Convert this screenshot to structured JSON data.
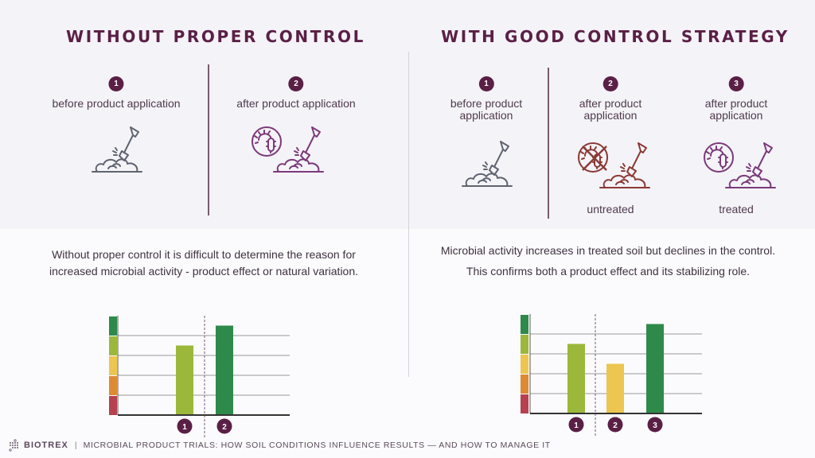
{
  "left": {
    "title": "WITHOUT PROPER CONTROL",
    "steps": [
      {
        "number": "1",
        "label": "before product application",
        "icon": "soil-shovel-icon"
      },
      {
        "number": "2",
        "label": "after product application",
        "icon": "soil-shovel-microbes-icon"
      }
    ],
    "description": [
      "Without proper control it is difficult to determine the reason for",
      "increased microbial activity - product effect or natural variation."
    ]
  },
  "right": {
    "title": "WITH GOOD CONTROL STRATEGY",
    "steps": [
      {
        "number": "1",
        "label_line1": "before product",
        "label_line2": "application",
        "sublabel": "",
        "icon": "soil-shovel-icon"
      },
      {
        "number": "2",
        "label_line1": "after product",
        "label_line2": "application",
        "sublabel": "untreated",
        "icon": "soil-shovel-no-microbes-icon"
      },
      {
        "number": "3",
        "label_line1": "after product",
        "label_line2": "application",
        "sublabel": "treated",
        "icon": "soil-shovel-microbes-icon"
      }
    ],
    "description": [
      "Microbial activity increases in treated soil but declines in the control.",
      "This confirms both a product effect and its stabilizing role."
    ]
  },
  "colors": {
    "accent": "#5a1f45",
    "neutral_icon": "#5f6470",
    "untreated_icon": "#8b3a36",
    "treated_icon": "#7b3a7a",
    "scale": [
      "#b6424f",
      "#dd8a33",
      "#ecc650",
      "#9bb83a",
      "#2e8a4a"
    ]
  },
  "chart_data": [
    {
      "type": "bar",
      "title": "",
      "xlabel": "",
      "ylabel": "",
      "ylim": [
        0,
        5
      ],
      "grid": true,
      "scale_levels": 5,
      "categories": [
        "1",
        "2"
      ],
      "values": [
        3.5,
        4.5
      ],
      "bar_colors": [
        "#9bb83a",
        "#2e8a4a"
      ],
      "divider_after_index": 0
    },
    {
      "type": "bar",
      "title": "",
      "xlabel": "",
      "ylabel": "",
      "ylim": [
        0,
        5
      ],
      "grid": true,
      "scale_levels": 5,
      "categories": [
        "1",
        "2",
        "3"
      ],
      "values": [
        3.5,
        2.5,
        4.5
      ],
      "bar_colors": [
        "#9bb83a",
        "#ecc650",
        "#2e8a4a"
      ],
      "divider_after_index": 0
    }
  ],
  "footer": {
    "brand": "BIOTREX",
    "separator": "|",
    "text": "MICROBIAL PRODUCT TRIALS: HOW SOIL CONDITIONS INFLUENCE RESULTS — AND HOW TO MANAGE IT"
  }
}
